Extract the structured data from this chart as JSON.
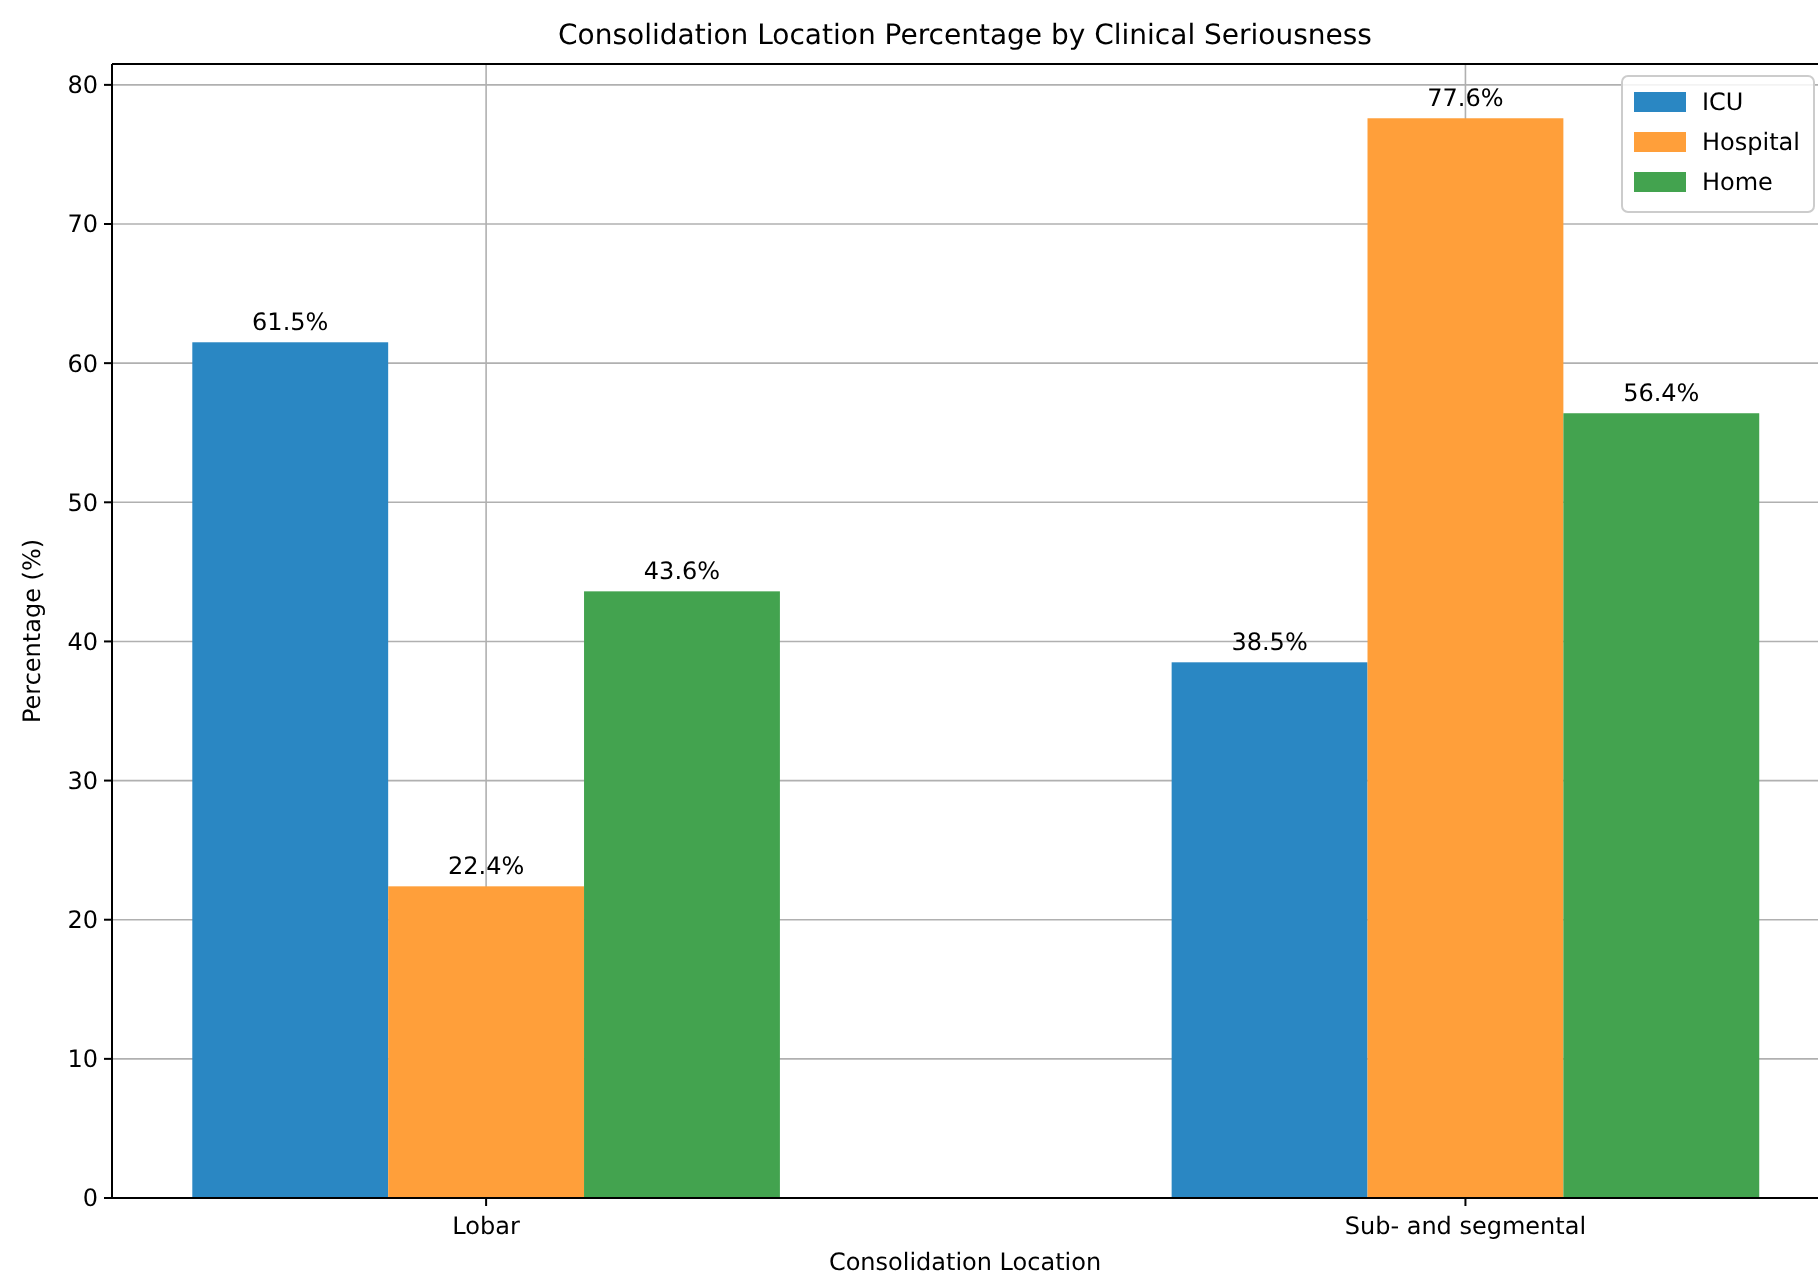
{
  "chart_data": {
    "type": "bar",
    "title": "Consolidation Location Percentage by Clinical Seriousness",
    "xlabel": "Consolidation Location",
    "ylabel": "Percentage (%)",
    "categories": [
      "Lobar",
      "Sub- and segmental"
    ],
    "series": [
      {
        "name": "ICU",
        "color": "#2a87c3",
        "values": [
          61.5,
          38.5
        ],
        "value_labels": [
          "61.5%",
          "38.5%"
        ]
      },
      {
        "name": "Hospital",
        "color": "#ff9f3a",
        "values": [
          22.4,
          77.6
        ],
        "value_labels": [
          "22.4%",
          "77.6%"
        ]
      },
      {
        "name": "Home",
        "color": "#43a34f",
        "values": [
          43.6,
          56.4
        ],
        "value_labels": [
          "43.6%",
          "56.4%"
        ]
      }
    ],
    "ylim": [
      0,
      81.5
    ],
    "yticks": [
      0,
      10,
      20,
      30,
      40,
      50,
      60,
      70,
      80
    ],
    "grid": true,
    "legend": "top right"
  }
}
